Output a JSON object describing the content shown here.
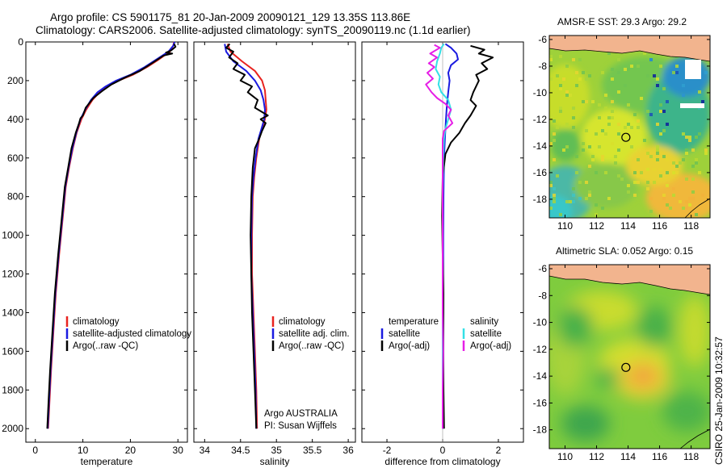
{
  "header": {
    "line1": "Argo profile: CS 5901175_81 20-Jan-2009 20090121_129 13.35S 113.86E",
    "line2": "Climatology: CARS2006. Satellite-adjusted climatology: synTS_20090119.nc (1.1d earlier)"
  },
  "side_note": "CSIRO 25-Jan-2009 10:32:57",
  "colors": {
    "red": "#e8231f",
    "blue": "#1a1ae0",
    "black": "#000000",
    "cyan": "#33e0e6",
    "magenta": "#e61fe6",
    "coast": "#000000",
    "land": "#f2b48e"
  },
  "chart_data": [
    {
      "id": "temperature",
      "type": "line",
      "xlabel": "temperature",
      "xlim": [
        -2,
        32
      ],
      "xticks": [
        0,
        10,
        20,
        30
      ],
      "ylim": [
        0,
        2070
      ],
      "yticks": [
        0,
        200,
        400,
        600,
        800,
        1000,
        1200,
        1400,
        1600,
        1800,
        2000
      ],
      "y_reversed": true,
      "legend": [
        "climatology",
        "satellite-adjusted climatology",
        "Argo(..raw -QC)"
      ],
      "series": [
        {
          "name": "climatology",
          "color": "#e8231f",
          "points": [
            [
              29.2,
              0
            ],
            [
              29.0,
              20
            ],
            [
              28.3,
              50
            ],
            [
              26,
              90
            ],
            [
              23.5,
              130
            ],
            [
              20.5,
              170
            ],
            [
              17.5,
              200
            ],
            [
              15.2,
              230
            ],
            [
              13.5,
              260
            ],
            [
              12,
              300
            ],
            [
              10.7,
              350
            ],
            [
              9.7,
              400
            ],
            [
              8.7,
              470
            ],
            [
              7.9,
              550
            ],
            [
              7.1,
              650
            ],
            [
              6.4,
              750
            ],
            [
              5.8,
              900
            ],
            [
              5.0,
              1100
            ],
            [
              4.3,
              1300
            ],
            [
              3.8,
              1500
            ],
            [
              3.3,
              1700
            ],
            [
              3.0,
              1850
            ],
            [
              2.7,
              2000
            ]
          ]
        },
        {
          "name": "satellite-adjusted climatology",
          "color": "#1a1ae0",
          "points": [
            [
              29.3,
              0
            ],
            [
              29.0,
              20
            ],
            [
              28.0,
              50
            ],
            [
              25.5,
              90
            ],
            [
              23.0,
              130
            ],
            [
              20.0,
              170
            ],
            [
              17.0,
              200
            ],
            [
              14.8,
              230
            ],
            [
              13.1,
              260
            ],
            [
              11.7,
              300
            ],
            [
              10.5,
              350
            ],
            [
              9.5,
              400
            ],
            [
              8.6,
              470
            ],
            [
              7.8,
              550
            ],
            [
              7.0,
              650
            ],
            [
              6.3,
              750
            ],
            [
              5.7,
              900
            ],
            [
              4.9,
              1100
            ],
            [
              4.2,
              1300
            ],
            [
              3.7,
              1500
            ],
            [
              3.2,
              1700
            ],
            [
              2.9,
              1850
            ],
            [
              2.6,
              2000
            ]
          ]
        },
        {
          "name": "Argo(..raw -QC)",
          "color": "#000000",
          "points": [
            [
              29.2,
              10
            ],
            [
              29.5,
              25
            ],
            [
              28.5,
              45
            ],
            [
              27.5,
              55
            ],
            [
              28.8,
              60
            ],
            [
              27.0,
              70
            ],
            [
              24.5,
              110
            ],
            [
              22.0,
              150
            ],
            [
              18.8,
              185
            ],
            [
              16.0,
              220
            ],
            [
              14.0,
              255
            ],
            [
              12.2,
              290
            ],
            [
              10.6,
              340
            ],
            [
              10.0,
              380
            ],
            [
              9.5,
              395
            ],
            [
              9.2,
              420
            ],
            [
              8.5,
              470
            ],
            [
              7.6,
              550
            ],
            [
              6.9,
              650
            ],
            [
              6.2,
              750
            ],
            [
              5.6,
              900
            ],
            [
              4.8,
              1100
            ],
            [
              4.1,
              1300
            ],
            [
              3.6,
              1500
            ],
            [
              3.1,
              1700
            ],
            [
              2.8,
              1850
            ],
            [
              2.5,
              2000
            ]
          ]
        }
      ]
    },
    {
      "id": "salinity",
      "type": "line",
      "xlabel": "salinity",
      "xlim": [
        33.85,
        36.1
      ],
      "xticks": [
        34,
        34.5,
        35,
        35.5,
        36
      ],
      "ylim": [
        0,
        2070
      ],
      "y_reversed": true,
      "legend": [
        "climatology",
        "satellite adj. clim.",
        "Argo(..raw -QC)"
      ],
      "annotation": [
        "Argo AUSTRALIA",
        "PI: Susan Wijffels"
      ],
      "series": [
        {
          "name": "climatology",
          "color": "#e8231f",
          "points": [
            [
              34.32,
              10
            ],
            [
              34.36,
              50
            ],
            [
              34.52,
              100
            ],
            [
              34.7,
              150
            ],
            [
              34.8,
              200
            ],
            [
              34.84,
              250
            ],
            [
              34.85,
              300
            ],
            [
              34.86,
              350
            ],
            [
              34.84,
              400
            ],
            [
              34.8,
              450
            ],
            [
              34.76,
              500
            ],
            [
              34.72,
              600
            ],
            [
              34.69,
              700
            ],
            [
              34.67,
              800
            ],
            [
              34.66,
              1000
            ],
            [
              34.66,
              1200
            ],
            [
              34.68,
              1400
            ],
            [
              34.7,
              1600
            ],
            [
              34.72,
              1800
            ],
            [
              34.73,
              2000
            ]
          ]
        },
        {
          "name": "satellite adj. clim.",
          "color": "#1a1ae0",
          "points": [
            [
              34.28,
              10
            ],
            [
              34.3,
              50
            ],
            [
              34.4,
              100
            ],
            [
              34.58,
              150
            ],
            [
              34.7,
              200
            ],
            [
              34.78,
              250
            ],
            [
              34.82,
              300
            ],
            [
              34.84,
              350
            ],
            [
              34.83,
              400
            ],
            [
              34.79,
              450
            ],
            [
              34.75,
              500
            ],
            [
              34.71,
              600
            ],
            [
              34.68,
              700
            ],
            [
              34.66,
              800
            ],
            [
              34.65,
              1000
            ],
            [
              34.65,
              1200
            ],
            [
              34.67,
              1400
            ],
            [
              34.69,
              1600
            ],
            [
              34.71,
              1800
            ],
            [
              34.72,
              2000
            ]
          ]
        },
        {
          "name": "Argo(..raw -QC)",
          "color": "#000000",
          "points": [
            [
              34.35,
              10
            ],
            [
              34.3,
              30
            ],
            [
              34.4,
              50
            ],
            [
              34.34,
              80
            ],
            [
              34.46,
              110
            ],
            [
              34.4,
              140
            ],
            [
              34.56,
              170
            ],
            [
              34.5,
              200
            ],
            [
              34.66,
              230
            ],
            [
              34.6,
              260
            ],
            [
              34.74,
              300
            ],
            [
              34.7,
              340
            ],
            [
              34.88,
              380
            ],
            [
              34.78,
              400
            ],
            [
              34.85,
              420
            ],
            [
              34.8,
              460
            ],
            [
              34.76,
              500
            ],
            [
              34.7,
              550
            ],
            [
              34.67,
              650
            ],
            [
              34.65,
              800
            ],
            [
              34.64,
              1000
            ],
            [
              34.65,
              1200
            ],
            [
              34.66,
              1400
            ],
            [
              34.68,
              1600
            ],
            [
              34.7,
              1800
            ],
            [
              34.72,
              2000
            ]
          ]
        }
      ]
    },
    {
      "id": "difference",
      "type": "line",
      "xlabel": "difference from climatology",
      "xlim": [
        -2.9,
        2.9
      ],
      "xticks": [
        -2,
        0,
        2
      ],
      "ylim": [
        0,
        2070
      ],
      "y_reversed": true,
      "legend": [
        "temperature",
        "satellite",
        "Argo(-adj)",
        "salinity",
        "satellite",
        "Argo(-adj)"
      ],
      "series": [
        {
          "name": "temperature satellite",
          "color": "#1a1ae0",
          "points": [
            [
              0.1,
              10
            ],
            [
              0.3,
              30
            ],
            [
              0.5,
              60
            ],
            [
              0.55,
              90
            ],
            [
              0.3,
              120
            ],
            [
              0.2,
              160
            ],
            [
              0.25,
              200
            ],
            [
              0.2,
              260
            ],
            [
              0.15,
              330
            ],
            [
              0.12,
              400
            ],
            [
              0.08,
              500
            ],
            [
              0.05,
              600
            ],
            [
              0.03,
              800
            ],
            [
              0.02,
              1000
            ],
            [
              0.02,
              1500
            ],
            [
              0.02,
              2000
            ]
          ]
        },
        {
          "name": "temperature Argo(-adj)",
          "color": "#000000",
          "points": [
            [
              1.0,
              20
            ],
            [
              1.5,
              40
            ],
            [
              1.3,
              60
            ],
            [
              1.8,
              80
            ],
            [
              1.4,
              110
            ],
            [
              1.6,
              140
            ],
            [
              1.2,
              170
            ],
            [
              1.3,
              200
            ],
            [
              1.1,
              260
            ],
            [
              1.0,
              300
            ],
            [
              1.2,
              330
            ],
            [
              1.0,
              380
            ],
            [
              0.8,
              420
            ],
            [
              0.6,
              470
            ],
            [
              0.3,
              520
            ],
            [
              0.1,
              580
            ],
            [
              0.0,
              700
            ],
            [
              -0.02,
              900
            ],
            [
              0.0,
              1100
            ],
            [
              0.03,
              1300
            ],
            [
              0.02,
              1600
            ],
            [
              0.03,
              1800
            ],
            [
              0.05,
              2000
            ]
          ]
        },
        {
          "name": "salinity satellite",
          "color": "#33e0e6",
          "points": [
            [
              0.05,
              10
            ],
            [
              -0.05,
              30
            ],
            [
              -0.1,
              60
            ],
            [
              -0.2,
              100
            ],
            [
              -0.25,
              140
            ],
            [
              -0.1,
              180
            ],
            [
              -0.15,
              220
            ],
            [
              -0.05,
              260
            ],
            [
              0.2,
              300
            ],
            [
              0.3,
              350
            ],
            [
              0.2,
              400
            ],
            [
              0.1,
              450
            ],
            [
              0.05,
              500
            ],
            [
              0.02,
              600
            ],
            [
              0.0,
              800
            ],
            [
              0.0,
              1000
            ],
            [
              0.0,
              1400
            ],
            [
              0.0,
              2000
            ]
          ]
        },
        {
          "name": "salinity Argo(-adj)",
          "color": "#e61fe6",
          "points": [
            [
              -0.3,
              15
            ],
            [
              -0.1,
              30
            ],
            [
              -0.45,
              60
            ],
            [
              -0.2,
              80
            ],
            [
              -0.5,
              110
            ],
            [
              -0.3,
              130
            ],
            [
              -0.55,
              160
            ],
            [
              -0.35,
              190
            ],
            [
              -0.6,
              220
            ],
            [
              -0.4,
              260
            ],
            [
              -0.2,
              290
            ],
            [
              0.1,
              320
            ],
            [
              0.3,
              350
            ],
            [
              0.2,
              380
            ],
            [
              0.35,
              420
            ],
            [
              0.05,
              460
            ],
            [
              0.0,
              500
            ],
            [
              0.0,
              1300
            ],
            [
              0.0,
              1400
            ],
            [
              0.02,
              1600
            ],
            [
              0.0,
              1800
            ],
            [
              0.0,
              2000
            ]
          ]
        }
      ]
    },
    {
      "id": "sst_map",
      "type": "heatmap",
      "title": "AMSR-E SST: 29.3 Argo: 29.2",
      "xlim": [
        109,
        119.2
      ],
      "ylim": [
        -19.4,
        -5.7
      ],
      "xticks": [
        110,
        112,
        114,
        116,
        118
      ],
      "yticks": [
        -6,
        -8,
        -10,
        -12,
        -14,
        -16,
        -18
      ],
      "marker": [
        113.86,
        -13.35
      ]
    },
    {
      "id": "sla_map",
      "type": "heatmap",
      "title": "Altimetric SLA: 0.052 Argo: 0.15",
      "xlim": [
        109,
        119.2
      ],
      "ylim": [
        -19.4,
        -5.7
      ],
      "xticks": [
        110,
        112,
        114,
        116,
        118
      ],
      "yticks": [
        -6,
        -8,
        -10,
        -12,
        -14,
        -16,
        -18
      ],
      "marker": [
        113.86,
        -13.35
      ]
    }
  ]
}
